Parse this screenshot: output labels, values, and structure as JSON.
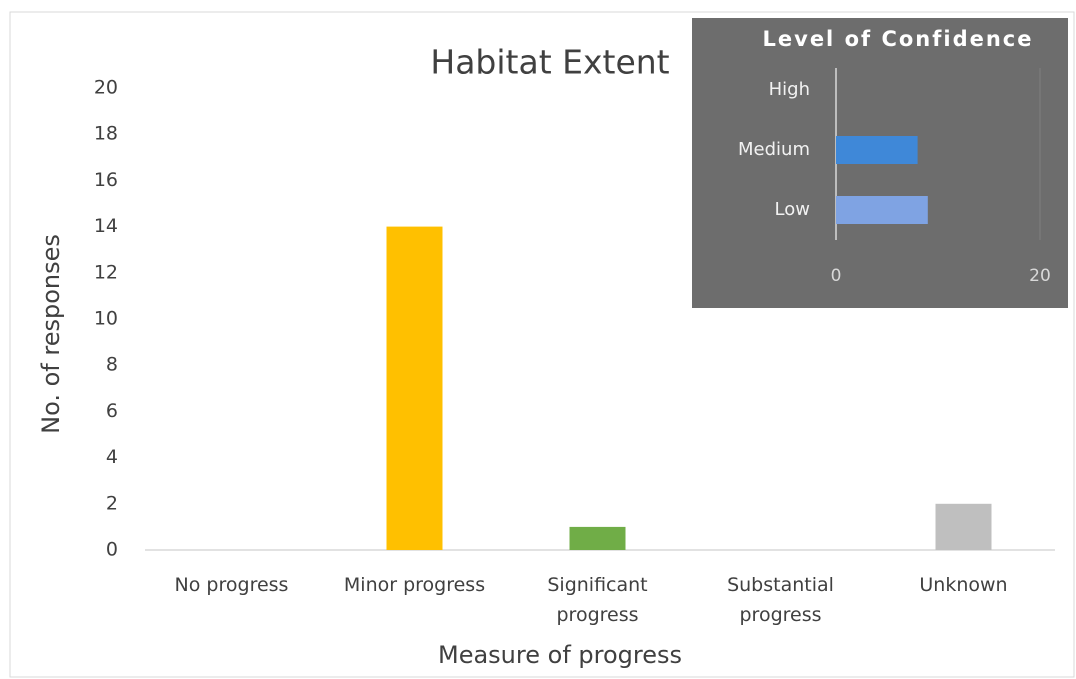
{
  "chart_data": [
    {
      "type": "bar",
      "title": "Habitat Extent",
      "x_label": "Measure of progress",
      "y_label": "No. of responses",
      "categories": [
        "No progress",
        "Minor progress",
        "Significant progress",
        "Substantial progress",
        "Unknown"
      ],
      "values": [
        0,
        14,
        1,
        0,
        2
      ],
      "colors": [
        "#4472c4",
        "#ffc000",
        "#70ad47",
        "#5b9bd5",
        "#bfbfbf"
      ],
      "ylim": [
        0,
        20
      ],
      "yticks": [
        0,
        2,
        4,
        6,
        8,
        10,
        12,
        14,
        16,
        18,
        20
      ],
      "grid": false
    },
    {
      "type": "hbar",
      "title": "Level of Confidence",
      "categories": [
        "High",
        "Medium",
        "Low"
      ],
      "values": [
        0,
        8,
        9
      ],
      "colors": [
        "#5b9bd5",
        "#3f88d8",
        "#7fa3e3"
      ],
      "xlim": [
        0,
        20
      ],
      "xticks": [
        0,
        20
      ],
      "grid": true
    }
  ]
}
